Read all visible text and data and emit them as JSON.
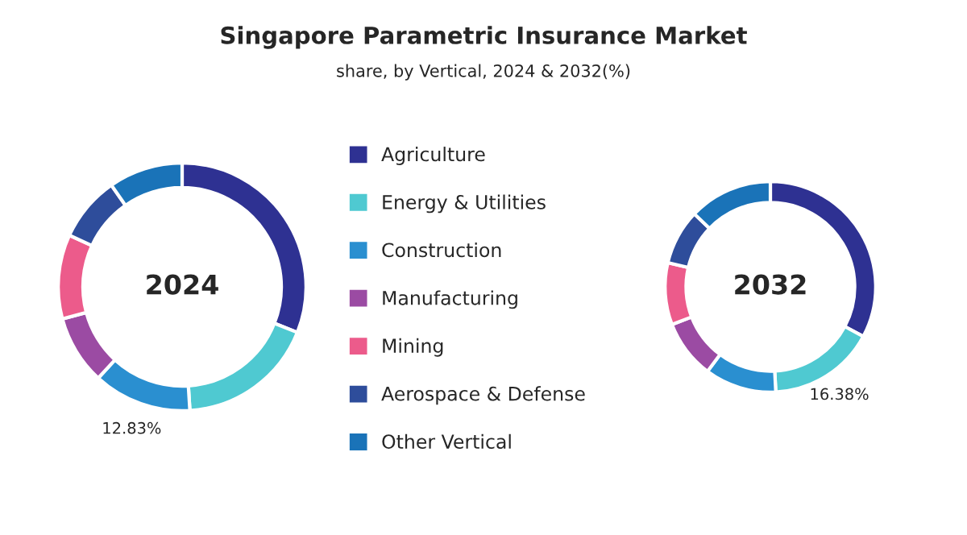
{
  "chart_data": [
    {
      "type": "donut",
      "title": "Singapore Parametric Insurance Market",
      "subtitle": "share, by Vertical, 2024 & 2032(%)",
      "annotations": [
        "2024"
      ],
      "legend": "right",
      "categories": [
        "Agriculture",
        "Energy & Utilities",
        "Construction",
        "Manufacturing",
        "Mining",
        "Aerospace & Defense",
        "Other Vertical"
      ],
      "values": [
        31,
        18,
        12.83,
        9,
        11,
        8.5,
        9.67
      ],
      "value_labels": [
        null,
        null,
        "12.83%",
        null,
        null,
        null,
        null
      ],
      "colors": [
        "#2e3192",
        "#4fc9d1",
        "#2a8fd0",
        "#9b4ba3",
        "#ec5b8b",
        "#2e4d9b",
        "#1a73b8"
      ]
    },
    {
      "type": "donut",
      "annotations": [
        "2032"
      ],
      "categories": [
        null,
        null,
        null,
        null,
        null,
        null,
        null
      ],
      "values": [
        32.8,
        16.38,
        11,
        9,
        9.5,
        8.5,
        12.82
      ],
      "value_labels": [
        null,
        "16.38%",
        null,
        null,
        null,
        null,
        null
      ],
      "colors": [
        "#2e3192",
        "#4fc9d1",
        "#2a8fd0",
        "#9b4ba3",
        "#ec5b8b",
        "#2e4d9b",
        "#1a73b8"
      ]
    }
  ]
}
